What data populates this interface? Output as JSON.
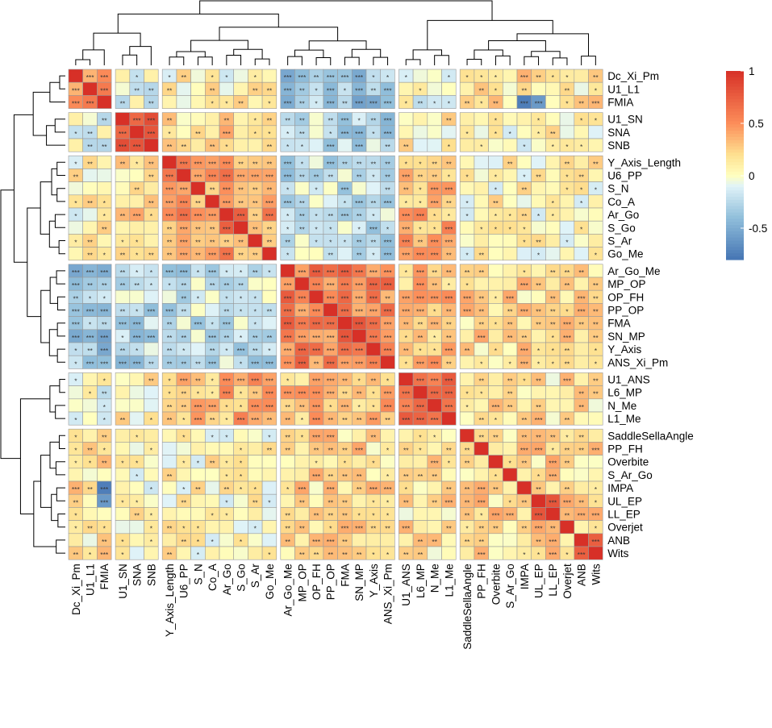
{
  "chart_data": {
    "type": "heatmap",
    "title": "",
    "variables": [
      "Dc_Xi_Pm",
      "U1_L1",
      "FMIA",
      "U1_SN",
      "SNA",
      "SNB",
      "Y_Axis_Length",
      "U6_PP",
      "S_N",
      "Co_A",
      "Ar_Go",
      "S_Go",
      "S_Ar",
      "Go_Me",
      "Ar_Go_Me",
      "MP_OP",
      "OP_FH",
      "PP_OP",
      "FMA",
      "SN_MP",
      "Y_Axis",
      "ANS_Xi_Pm",
      "U1_ANS",
      "L6_MP",
      "N_Me",
      "L1_Me",
      "SaddleSellaAngle",
      "PP_FH",
      "Overbite",
      "S_Ar_Go",
      "IMPA",
      "UL_EP",
      "LL_EP",
      "Overjet",
      "ANB",
      "Wits"
    ],
    "row_groups": [
      3,
      3,
      8,
      8,
      4,
      10
    ],
    "col_groups": [
      3,
      3,
      8,
      8,
      4,
      10
    ],
    "legend": {
      "ticks": [
        1,
        0.5,
        0,
        -0.5
      ],
      "range": [
        -0.8,
        1
      ],
      "colors": [
        "#d73027",
        "#fc8d59",
        "#fee090",
        "#ffffbf",
        "#e0f3f8",
        "#91bfdb",
        "#4575b4"
      ]
    },
    "significance_symbols": [
      "*",
      "**",
      "***"
    ],
    "notes": "Correlation heatmap with hierarchical clustering; values are approximate correlations estimated from cell colors; block-structured."
  }
}
